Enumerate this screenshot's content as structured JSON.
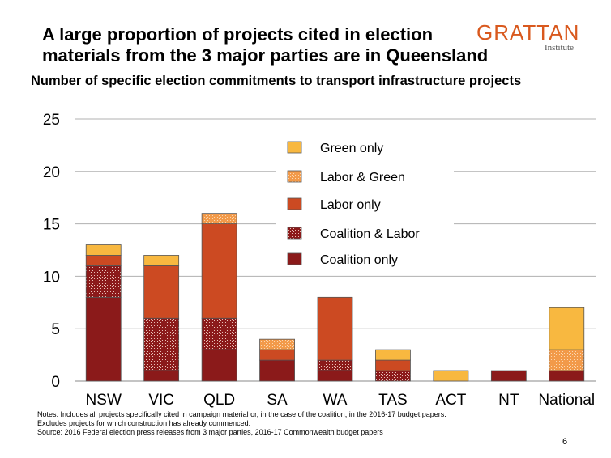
{
  "title": "A large proportion of projects cited in election materials from the 3 major parties are in Queensland",
  "logo": {
    "main": "GRATTAN",
    "sub": "Institute"
  },
  "colors": {
    "coalition_only": "#8b1a1a",
    "coalition_labor": "#8b1a1a",
    "labor_only": "#cc4a22",
    "labor_green": "#f29a4a",
    "green_only": "#f8b840",
    "accent": "#e8a03a"
  },
  "chart_data": {
    "type": "bar",
    "stacked": true,
    "title": "Number of specific election commitments to transport infrastructure projects",
    "categories": [
      "NSW",
      "VIC",
      "QLD",
      "SA",
      "WA",
      "TAS",
      "ACT",
      "NT",
      "National"
    ],
    "series": [
      {
        "name": "Coalition only",
        "values": [
          8,
          1,
          3,
          2,
          1,
          0,
          0,
          1,
          1
        ]
      },
      {
        "name": "Coalition & Labor",
        "values": [
          3,
          5,
          3,
          0,
          1,
          1,
          0,
          0,
          0
        ]
      },
      {
        "name": "Labor only",
        "values": [
          1,
          5,
          9,
          1,
          6,
          1,
          0,
          0,
          0
        ]
      },
      {
        "name": "Labor & Green",
        "values": [
          0,
          0,
          1,
          1,
          0,
          0,
          0,
          0,
          2
        ]
      },
      {
        "name": "Green only",
        "values": [
          1,
          1,
          0,
          0,
          0,
          1,
          1,
          0,
          4
        ]
      }
    ],
    "legend_order": [
      "Green only",
      "Labor & Green",
      "Labor only",
      "Coalition & Labor",
      "Coalition only"
    ],
    "ylim": [
      0,
      25
    ],
    "yticks": [
      0,
      5,
      10,
      15,
      20,
      25
    ],
    "grid": true,
    "legend_position": "top-right"
  },
  "notes": [
    "Notes: Includes all projects specifically cited in campaign material or, in the case of the coalition, in the 2016-17  budget papers.",
    "Excludes projects for which construction has already commenced.",
    "Source: 2016 Federal election press releases from 3 major parties, 2016-17 Commonwealth budget papers"
  ],
  "page_number": "6"
}
